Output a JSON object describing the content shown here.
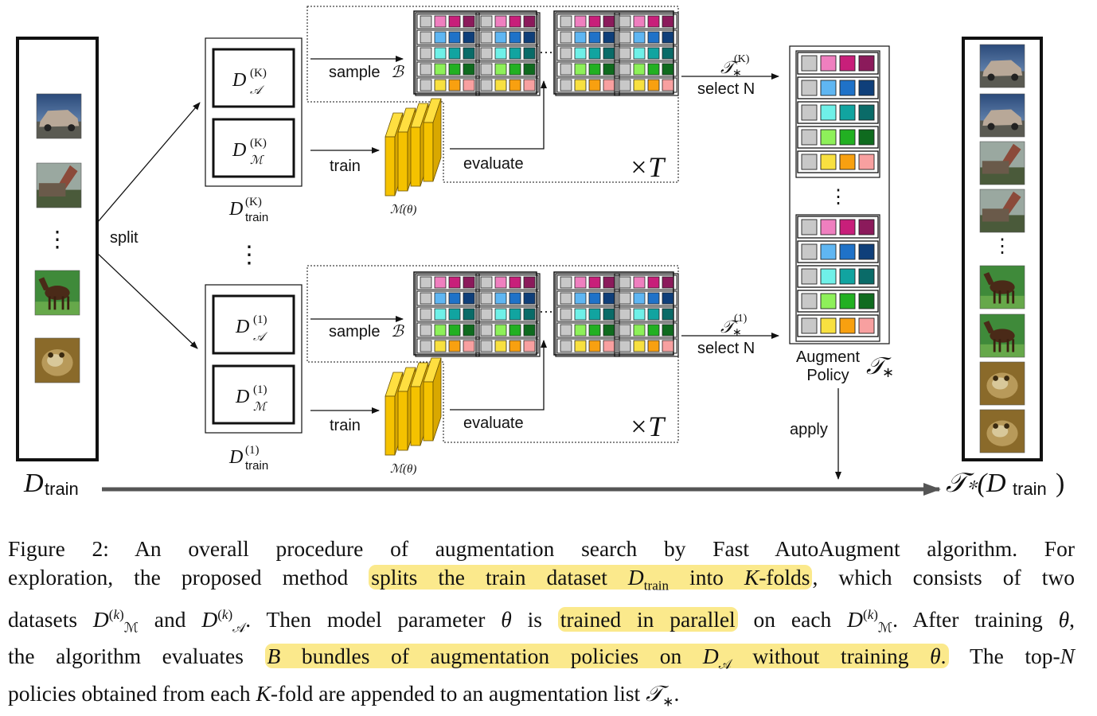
{
  "diagram": {
    "label_split": "split",
    "label_sample": "sample",
    "label_train": "train",
    "label_evaluate": "evaluate",
    "label_times": "×T",
    "label_select": "select N",
    "label_apply": "apply",
    "label_augment": "Augment",
    "label_policy": "Policy",
    "label_model": "ℳ(θ)",
    "label_dtrain": "D",
    "sub_train": "train",
    "label_tau_result": "𝒯∗(D",
    "sup_K": "(K)",
    "sup_1": "(1)",
    "ellipsis": "⋮",
    "hellipsis": "···",
    "colors": {
      "gray": "#c8c8c8",
      "pink": "#ef7fbf",
      "magenta": "#c81f7a",
      "purple": "#8b1a5b",
      "lightblue": "#5fb6f2",
      "blue": "#1f72c8",
      "darkblue": "#0f3f7a",
      "lightcyan": "#6ff0e8",
      "cyan": "#11a4a0",
      "teal": "#0a6b68",
      "lightgreen": "#8ef05a",
      "green": "#22b022",
      "darkgreen": "#0f6b1f",
      "yellow": "#f8e040",
      "orange": "#f8a010",
      "salmon": "#f8a0a0",
      "model": "#f5c200"
    }
  },
  "caption": {
    "line1": "Figure 2:  An overall procedure of augmentation search by Fast AutoAugment algorithm.  For",
    "line2_a": "exploration, the proposed method ",
    "line2_hl1": "splits the train dataset ",
    "line2_hl2": " into ",
    "line2_hl3": "-folds",
    "line2_b": ", which consists of two",
    "line3_a": "datasets ",
    "line3_b": " and ",
    "line3_c": ". Then model parameter ",
    "line3_d": " is ",
    "line3_hl": "trained in parallel",
    "line3_e": " on each ",
    "line3_f": ". After training ",
    "line3_g": ",",
    "line4_a": "the algorithm evaluates ",
    "line4_hl1": " bundles of augmentation policies on ",
    "line4_hl2": " without training ",
    "line4_b": " The top-",
    "line5_a": "policies obtained from each ",
    "line5_b": "-fold are appended to an augmentation list ",
    "line5_c": "."
  }
}
